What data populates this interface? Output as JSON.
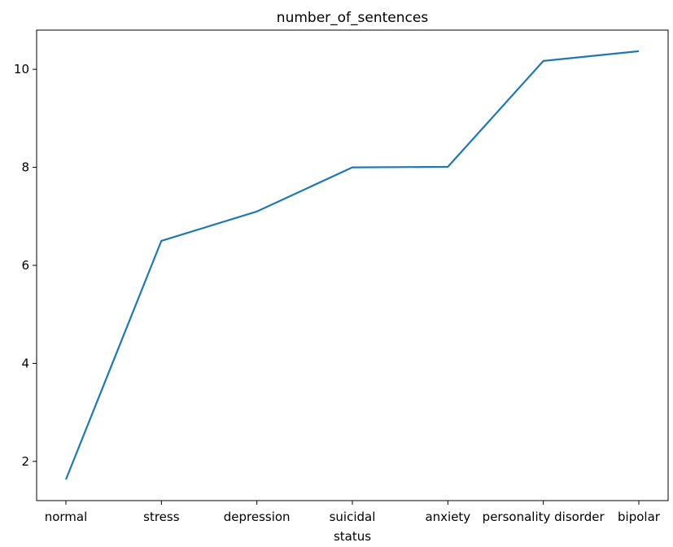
{
  "chart_data": {
    "type": "line",
    "title": "number_of_sentences",
    "xlabel": "status",
    "ylabel": "",
    "categories": [
      "normal",
      "stress",
      "depression",
      "suicidal",
      "anxiety",
      "personality disorder",
      "bipolar"
    ],
    "series": [
      {
        "values": [
          1.63,
          6.5,
          7.1,
          8.0,
          8.01,
          10.17,
          10.37
        ],
        "color": "#1f77b4"
      }
    ],
    "ylim": [
      1.2,
      10.8
    ],
    "yticks": [
      2,
      4,
      6,
      8,
      10
    ],
    "grid": false,
    "legend": "none"
  }
}
